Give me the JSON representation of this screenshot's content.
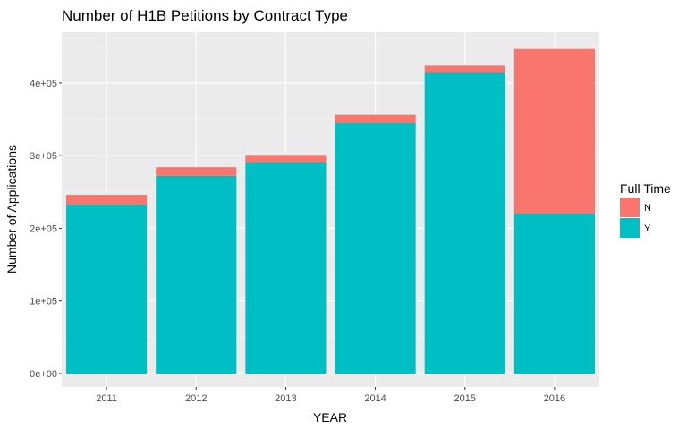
{
  "chart_data": {
    "type": "bar",
    "stacked": true,
    "title": "Number of H1B Petitions by Contract Type",
    "xlabel": "YEAR",
    "ylabel": "Number of Applications",
    "categories": [
      "2011",
      "2012",
      "2013",
      "2014",
      "2015",
      "2016"
    ],
    "series": [
      {
        "name": "Y",
        "values": [
          233000,
          272000,
          291000,
          345000,
          414000,
          220000
        ],
        "color": "#00BFC4"
      },
      {
        "name": "N",
        "values": [
          13000,
          12000,
          10000,
          11000,
          10000,
          227000
        ],
        "color": "#F8766D"
      }
    ],
    "ylim": [
      0,
      470000
    ],
    "yticks": [
      0,
      100000,
      200000,
      300000,
      400000
    ],
    "ytick_labels": [
      "0e+00",
      "1e+05",
      "2e+05",
      "3e+05",
      "4e+05"
    ],
    "legend": {
      "title": "Full Time",
      "entries": [
        "N",
        "Y"
      ],
      "placement": "right"
    },
    "grid": true,
    "panel_color": "#EBEBEB"
  }
}
